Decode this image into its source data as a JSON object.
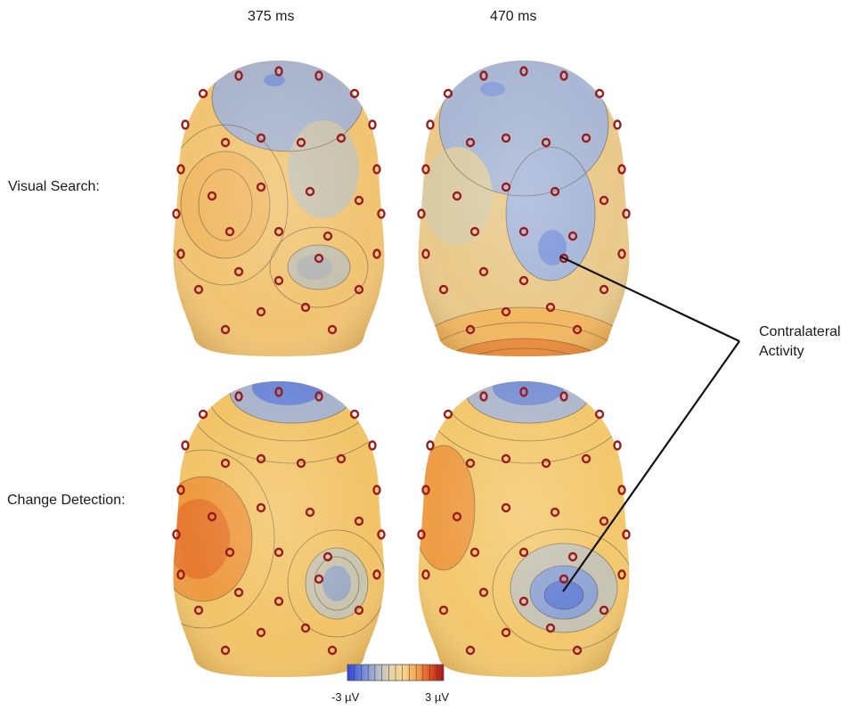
{
  "columns": {
    "c1": "375 ms",
    "c2": "470 ms"
  },
  "rows": {
    "r1": "Visual Search:",
    "r2": "Change Detection:"
  },
  "callout": {
    "line1": "Contralateral",
    "line2": "Activity"
  },
  "colorbar": {
    "min_label": "-3 µV",
    "max_label": "3 µV",
    "colors": [
      "#2f45d8",
      "#5c74de",
      "#8ea2da",
      "#bfc4cd",
      "#ddd1b4",
      "#f4d592",
      "#f7bd67",
      "#ef8f3f",
      "#e25a25",
      "#c42a1e",
      "#a5141a"
    ]
  },
  "colors": {
    "head_base": "#f3c66f",
    "negative": "#6f8ed6",
    "positive": "#e8842f",
    "electrode": "#9a1c1c"
  }
}
